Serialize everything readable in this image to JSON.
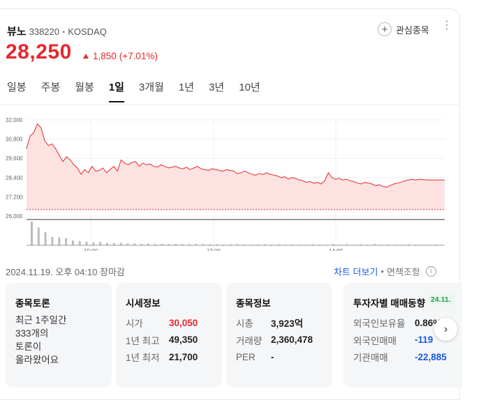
{
  "stock": {
    "name": "뷰노",
    "code": "338220",
    "separator": "•",
    "market": "KOSDAQ",
    "price": "28,250",
    "change": "1,850",
    "change_pct": "(+7.01%)"
  },
  "favorite": {
    "plus": "+",
    "label": "관심종목"
  },
  "more_icon": "⋮",
  "tabs": [
    "일봉",
    "주봉",
    "월봉",
    "1일",
    "3개월",
    "1년",
    "3년",
    "10년"
  ],
  "active_tab": "1일",
  "chart_data": {
    "type": "area",
    "y_ticks": [
      "32,000",
      "30,800",
      "29,600",
      "28,400",
      "27,200",
      "26,000"
    ],
    "y_tick_values": [
      32000,
      30800,
      29600,
      28400,
      27200,
      26000
    ],
    "ylim": [
      26000,
      32000
    ],
    "x_ticks": [
      "10:00",
      "12:00",
      "14:00"
    ],
    "baseline": 26400,
    "color_line": "#e6282f",
    "color_fill": "#fde2e2",
    "grid": true,
    "price_series": [
      30200,
      31000,
      31200,
      31750,
      31500,
      30700,
      30400,
      30500,
      30200,
      29800,
      29400,
      29700,
      29500,
      29200,
      29000,
      28600,
      28900,
      28700,
      29100,
      28800,
      28850,
      29000,
      28700,
      28900,
      29100,
      28800,
      29500,
      29300,
      29200,
      29350,
      29400,
      29100,
      29300,
      29200,
      29250,
      29100,
      29050,
      29200,
      29100,
      29000,
      29050,
      29100,
      29000,
      28950,
      29050,
      28900,
      29000,
      29100,
      28950,
      28900,
      28850,
      28950,
      28900,
      28850,
      28800,
      28900,
      28850,
      28800,
      28650,
      28700,
      28800,
      28700,
      28600,
      28550,
      28650,
      28600,
      28700,
      28600,
      28550,
      28500,
      28400,
      28450,
      28300,
      28400,
      28350,
      28250,
      28200,
      28100,
      28150,
      28050,
      28100,
      28000,
      28200,
      28700,
      28400,
      28300,
      28350,
      28250,
      28300,
      28200,
      28150,
      28050,
      28000,
      28100,
      28050,
      28000,
      27900,
      27950,
      27850,
      27800,
      27900,
      28000,
      28050,
      28100,
      28200,
      28250,
      28300,
      28250,
      28300,
      28280,
      28260,
      28250,
      28250,
      28250,
      28250,
      28250
    ],
    "volume_bars": [
      1.0,
      0.75,
      0.55,
      0.35,
      0.33,
      0.3,
      0.2,
      0.18,
      0.15,
      0.12,
      0.14,
      0.1,
      0.09,
      0.1,
      0.08,
      0.07,
      0.06,
      0.07,
      0.05,
      0.06,
      0.05,
      0.06,
      0.05,
      0.04,
      0.06,
      0.05,
      0.04,
      0.05,
      0.03,
      0.04,
      0.05,
      0.04,
      0.03,
      0.04,
      0.05,
      0.03,
      0.04,
      0.03,
      0.04,
      0.03,
      0.03,
      0.04,
      0.03,
      0.03,
      0.06,
      0.03,
      0.04,
      0.03,
      0.04,
      0.03,
      0.05,
      0.03,
      0.04,
      0.03,
      0.03,
      0.04,
      0.03,
      0.02,
      0.03,
      0.04
    ]
  },
  "timestamp": "2024.11.19. 오후 04:10 장마감",
  "links": {
    "chart_more": "차트 더보기",
    "sep": "•",
    "sitemap": "면책조항",
    "info": "i"
  },
  "panels": {
    "forum": {
      "title": "종목토론",
      "lines": [
        "최근 1주일간",
        "333개의",
        "토론이",
        "올라왔어요"
      ]
    },
    "market": {
      "title": "시세정보",
      "rows": [
        {
          "label": "시가",
          "value": "30,050"
        },
        {
          "label": "1년 최고",
          "value": "49,350"
        },
        {
          "label": "1년 최저",
          "value": "21,700"
        }
      ]
    },
    "stockinfo": {
      "title": "종목정보",
      "rows": [
        {
          "label": "시총",
          "value": "3,923억"
        },
        {
          "label": "거래량",
          "value": "2,360,478"
        },
        {
          "label": "PER",
          "value": "-"
        }
      ]
    },
    "investor": {
      "title": "투자자별 매매동향",
      "date": "24.11.",
      "rows": [
        {
          "label": "외국인보유율",
          "value": "0.86%"
        },
        {
          "label": "외국인매매",
          "value": "-119"
        },
        {
          "label": "기관매매",
          "value": "-22,885"
        }
      ]
    }
  },
  "next_icon": "›"
}
